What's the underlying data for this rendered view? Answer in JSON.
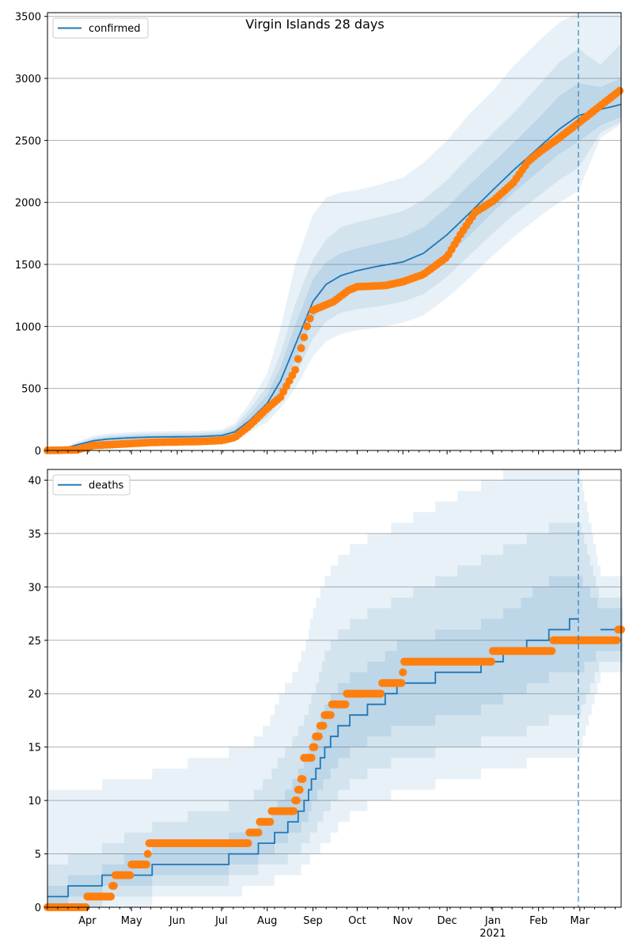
{
  "chart_data": [
    {
      "type": "line",
      "title": "Virgin Islands 28 days",
      "legend": {
        "label": "confirmed",
        "placement": "upper-left"
      },
      "ylim": [
        0,
        3530
      ],
      "yticks": [
        0,
        500,
        1000,
        1500,
        2000,
        2500,
        3000,
        3500
      ],
      "xlim": [
        "2020-03-05",
        "2021-03-29"
      ],
      "forecast_start": "2021-02-28",
      "grid": "horizontal",
      "colors": {
        "line": "#1f77b4",
        "band": "#1f77b4",
        "points": "#ff7f0e"
      },
      "series_model": {
        "dates": [
          "2020-03-05",
          "2020-03-15",
          "2020-03-25",
          "2020-04-05",
          "2020-04-15",
          "2020-05-01",
          "2020-05-15",
          "2020-06-01",
          "2020-06-15",
          "2020-07-01",
          "2020-07-10",
          "2020-07-20",
          "2020-08-01",
          "2020-08-10",
          "2020-08-20",
          "2020-09-01",
          "2020-09-10",
          "2020-09-20",
          "2020-10-01",
          "2020-10-15",
          "2020-11-01",
          "2020-11-15",
          "2020-12-01",
          "2020-12-15",
          "2021-01-01",
          "2021-01-15",
          "2021-02-01",
          "2021-02-15",
          "2021-02-28",
          "2021-03-15",
          "2021-03-29"
        ],
        "mid": [
          0,
          10,
          45,
          78,
          92,
          103,
          108,
          110,
          112,
          120,
          150,
          240,
          380,
          560,
          850,
          1200,
          1340,
          1410,
          1450,
          1485,
          1520,
          1590,
          1740,
          1900,
          2100,
          2260,
          2440,
          2590,
          2700,
          2750,
          2790
        ],
        "p25": [
          0,
          8,
          38,
          66,
          78,
          87,
          92,
          94,
          96,
          104,
          130,
          200,
          320,
          480,
          720,
          1060,
          1200,
          1270,
          1300,
          1320,
          1350,
          1410,
          1560,
          1720,
          1920,
          2080,
          2250,
          2390,
          2490,
          2620,
          2690
        ],
        "p75": [
          0,
          13,
          52,
          90,
          107,
          118,
          124,
          126,
          128,
          137,
          172,
          290,
          450,
          670,
          1010,
          1380,
          1520,
          1590,
          1630,
          1670,
          1720,
          1800,
          1960,
          2130,
          2320,
          2480,
          2680,
          2860,
          2960,
          2930,
          3000
        ],
        "p10": [
          0,
          6,
          30,
          55,
          64,
          72,
          76,
          78,
          80,
          88,
          110,
          170,
          270,
          400,
          600,
          900,
          1040,
          1110,
          1140,
          1160,
          1200,
          1260,
          1400,
          1560,
          1750,
          1900,
          2050,
          2180,
          2280,
          2560,
          2650
        ],
        "p90": [
          0,
          16,
          60,
          102,
          120,
          132,
          138,
          140,
          142,
          152,
          195,
          330,
          520,
          780,
          1180,
          1540,
          1700,
          1800,
          1840,
          1880,
          1930,
          2020,
          2180,
          2360,
          2560,
          2720,
          2940,
          3130,
          3240,
          3110,
          3280
        ],
        "p025": [
          0,
          4,
          22,
          44,
          52,
          58,
          62,
          64,
          66,
          74,
          95,
          145,
          230,
          340,
          500,
          760,
          880,
          940,
          970,
          990,
          1030,
          1090,
          1230,
          1380,
          1570,
          1720,
          1880,
          2000,
          2090,
          2520,
          2630
        ],
        "p975": [
          0,
          20,
          70,
          118,
          135,
          148,
          154,
          156,
          158,
          168,
          220,
          380,
          620,
          980,
          1500,
          1900,
          2040,
          2080,
          2100,
          2140,
          2200,
          2320,
          2500,
          2700,
          2900,
          3100,
          3300,
          3450,
          3530,
          3530,
          3530
        ]
      },
      "series_observed": {
        "anchor_dates": [
          "2020-03-05",
          "2020-03-25",
          "2020-04-05",
          "2020-04-25",
          "2020-05-15",
          "2020-06-15",
          "2020-07-01",
          "2020-07-10",
          "2020-07-20",
          "2020-08-01",
          "2020-08-10",
          "2020-08-20",
          "2020-08-28",
          "2020-09-01",
          "2020-09-15",
          "2020-09-25",
          "2020-10-01",
          "2020-10-20",
          "2020-11-01",
          "2020-11-15",
          "2020-12-01",
          "2020-12-10",
          "2020-12-20",
          "2021-01-01",
          "2021-01-15",
          "2021-01-25",
          "2021-02-01",
          "2021-02-15",
          "2021-02-28",
          "2021-03-15",
          "2021-03-29"
        ],
        "anchor_values": [
          0,
          5,
          40,
          52,
          65,
          72,
          80,
          105,
          200,
          340,
          430,
          650,
          1000,
          1130,
          1200,
          1290,
          1320,
          1330,
          1360,
          1420,
          1560,
          1740,
          1920,
          2010,
          2160,
          2330,
          2400,
          2520,
          2640,
          2780,
          2910
        ],
        "step_days": 2
      }
    },
    {
      "type": "line",
      "title": "",
      "legend": {
        "label": "deaths",
        "placement": "upper-left"
      },
      "ylim": [
        0,
        41
      ],
      "yticks": [
        0,
        5,
        10,
        15,
        20,
        25,
        30,
        35,
        40
      ],
      "xlim": [
        "2020-03-05",
        "2021-03-29"
      ],
      "forecast_start": "2021-02-28",
      "grid": "horizontal",
      "colors": {
        "line": "#1f77b4",
        "band": "#1f77b4",
        "points": "#ff7f0e"
      },
      "series_model": {
        "dates": [
          "2020-03-05",
          "2020-04-01",
          "2020-04-20",
          "2020-05-01",
          "2020-05-10",
          "2020-05-20",
          "2020-06-01",
          "2020-06-15",
          "2020-07-01",
          "2020-07-10",
          "2020-07-20",
          "2020-08-01",
          "2020-08-10",
          "2020-08-20",
          "2020-08-28",
          "2020-09-01",
          "2020-09-10",
          "2020-09-20",
          "2020-10-01",
          "2020-10-15",
          "2020-11-01",
          "2020-11-15",
          "2020-12-01",
          "2020-12-15",
          "2021-01-01",
          "2021-01-15",
          "2021-02-01",
          "2021-02-15",
          "2021-02-28",
          "2021-03-15",
          "2021-03-29"
        ],
        "mid": [
          1,
          2,
          3,
          3,
          3,
          4,
          4,
          4,
          4,
          5,
          5,
          6,
          7,
          8,
          10,
          12,
          15,
          17,
          18,
          19,
          21,
          21,
          22,
          22,
          23,
          24,
          25,
          26,
          27,
          26,
          26
        ],
        "p25": [
          0,
          1,
          2,
          2,
          2,
          3,
          3,
          3,
          3,
          4,
          4,
          5,
          6,
          7,
          8,
          10,
          12,
          14,
          15,
          16,
          17,
          17,
          18,
          18,
          19,
          20,
          21,
          22,
          22,
          24,
          24
        ],
        "p75": [
          2,
          3,
          4,
          5,
          5,
          6,
          6,
          6,
          6,
          7,
          7,
          8,
          10,
          12,
          14,
          16,
          19,
          21,
          22,
          23,
          25,
          25,
          26,
          26,
          27,
          28,
          30,
          31,
          31,
          28,
          28
        ],
        "p10": [
          0,
          0,
          1,
          1,
          1,
          2,
          2,
          2,
          2,
          3,
          3,
          4,
          4,
          5,
          6,
          7,
          9,
          11,
          12,
          13,
          14,
          14,
          15,
          15,
          16,
          16,
          17,
          18,
          18,
          23,
          23
        ],
        "p90": [
          4,
          5,
          6,
          7,
          7,
          8,
          8,
          9,
          9,
          10,
          10,
          12,
          14,
          16,
          18,
          20,
          24,
          26,
          27,
          28,
          29,
          30,
          31,
          32,
          33,
          34,
          35,
          36,
          36,
          29,
          29
        ],
        "p025": [
          0,
          0,
          0,
          0,
          0,
          1,
          1,
          1,
          1,
          1,
          2,
          2,
          3,
          3,
          4,
          5,
          6,
          8,
          9,
          10,
          11,
          11,
          12,
          12,
          13,
          13,
          14,
          14,
          14,
          22,
          22
        ],
        "p975": [
          11,
          11,
          12,
          12,
          12,
          13,
          13,
          14,
          14,
          15,
          15,
          17,
          20,
          22,
          25,
          28,
          31,
          33,
          34,
          35,
          36,
          37,
          38,
          39,
          40,
          41,
          41,
          41,
          41,
          31,
          31
        ]
      },
      "series_observed": {
        "anchor_dates": [
          "2020-03-05",
          "2020-03-31",
          "2020-04-01",
          "2020-04-15",
          "2020-04-18",
          "2020-04-20",
          "2020-05-01",
          "2020-05-10",
          "2020-05-12",
          "2020-05-13",
          "2020-07-19",
          "2020-07-20",
          "2020-07-26",
          "2020-07-27",
          "2020-08-02",
          "2020-08-04",
          "2020-08-17",
          "2020-08-20",
          "2020-08-22",
          "2020-08-24",
          "2020-08-26",
          "2020-08-28",
          "2020-09-01",
          "2020-09-03",
          "2020-09-06",
          "2020-09-09",
          "2020-09-12",
          "2020-09-14",
          "2020-09-22",
          "2020-09-24",
          "2020-10-03",
          "2020-10-06",
          "2020-10-16",
          "2020-10-18",
          "2020-10-31",
          "2020-11-01",
          "2020-11-02",
          "2020-12-31",
          "2021-01-01",
          "2021-02-10",
          "2021-02-11",
          "2021-03-26",
          "2021-03-27",
          "2021-03-29"
        ],
        "anchor_values": [
          0,
          0,
          1,
          1,
          2,
          3,
          4,
          4,
          5,
          6,
          6,
          7,
          7,
          8,
          8,
          9,
          9,
          10,
          11,
          12,
          14,
          14,
          15,
          16,
          17,
          18,
          18,
          19,
          19,
          20,
          20,
          20,
          20,
          21,
          21,
          22,
          23,
          23,
          24,
          24,
          25,
          25,
          26,
          26
        ],
        "step_days": 1
      }
    }
  ],
  "x_axis": {
    "tick_labels": [
      {
        "date": "2020-04-01",
        "label": "Apr"
      },
      {
        "date": "2020-05-01",
        "label": "May"
      },
      {
        "date": "2020-06-01",
        "label": "Jun"
      },
      {
        "date": "2020-07-01",
        "label": "Jul"
      },
      {
        "date": "2020-08-01",
        "label": "Aug"
      },
      {
        "date": "2020-09-01",
        "label": "Sep"
      },
      {
        "date": "2020-10-01",
        "label": "Oct"
      },
      {
        "date": "2020-11-01",
        "label": "Nov"
      },
      {
        "date": "2020-12-01",
        "label": "Dec"
      },
      {
        "date": "2021-01-01",
        "label": "Jan"
      },
      {
        "date": "2021-02-01",
        "label": "Feb"
      },
      {
        "date": "2021-03-01",
        "label": "Mar"
      }
    ],
    "year_label": {
      "date": "2021-01-01",
      "label": "2021"
    }
  }
}
